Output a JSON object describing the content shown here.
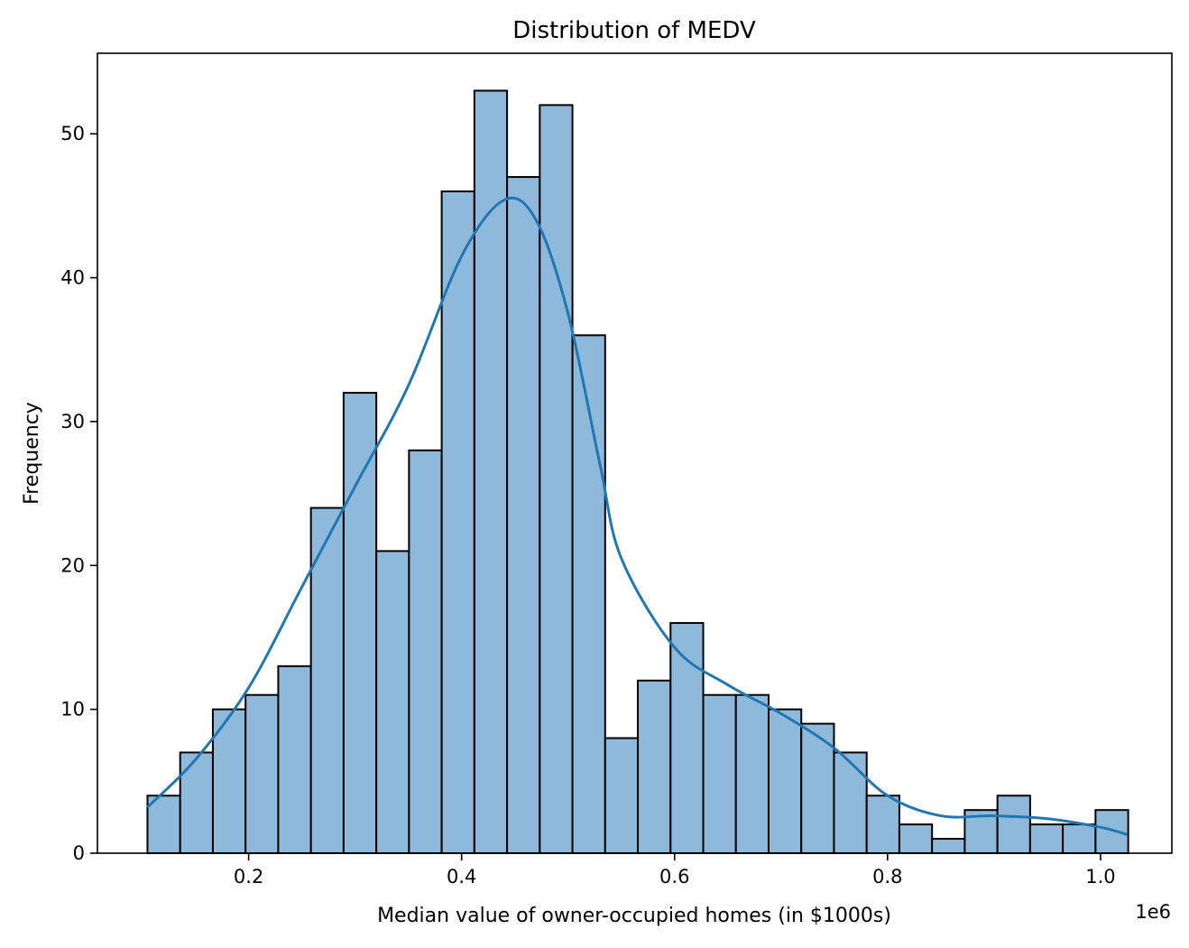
{
  "chart_data": {
    "type": "bar",
    "title": "Distribution of MEDV",
    "xlabel": "Median value of owner-occupied homes (in $1000s)",
    "ylabel": "Frequency",
    "x_offset_label": "1e6",
    "xlim": [
      0.058,
      1.067
    ],
    "ylim": [
      0,
      55.6
    ],
    "x_ticks": [
      0.2,
      0.4,
      0.6,
      0.8,
      1.0
    ],
    "x_tick_labels": [
      "0.2",
      "0.4",
      "0.6",
      "0.8",
      "1.0"
    ],
    "y_ticks": [
      0,
      10,
      20,
      30,
      40,
      50
    ],
    "y_tick_labels": [
      "0",
      "10",
      "20",
      "30",
      "40",
      "50"
    ],
    "bin_start": 0.105,
    "bin_width": 0.0307,
    "values": [
      4,
      7,
      10,
      11,
      13,
      24,
      32,
      21,
      28,
      46,
      53,
      47,
      52,
      36,
      8,
      12,
      16,
      11,
      11,
      10,
      9,
      7,
      4,
      2,
      1,
      3,
      4,
      2,
      2,
      3
    ],
    "kde": {
      "x": [
        0.105,
        0.15,
        0.2,
        0.25,
        0.3,
        0.35,
        0.4,
        0.44,
        0.47,
        0.5,
        0.53,
        0.55,
        0.6,
        0.65,
        0.7,
        0.75,
        0.8,
        0.85,
        0.9,
        0.95,
        1.0,
        1.025
      ],
      "y": [
        3.2,
        6.5,
        11.5,
        18.5,
        25.5,
        32.5,
        41.5,
        45.4,
        44,
        37.5,
        27,
        20.5,
        14.3,
        11.7,
        9.7,
        7.3,
        4,
        2.6,
        2.6,
        2.4,
        1.8,
        1.3
      ]
    },
    "colors": {
      "bar_fill": "#8fb9da",
      "bar_edge": "#000000",
      "kde_line": "#1f77b4"
    },
    "grid": false,
    "legend": "none"
  }
}
